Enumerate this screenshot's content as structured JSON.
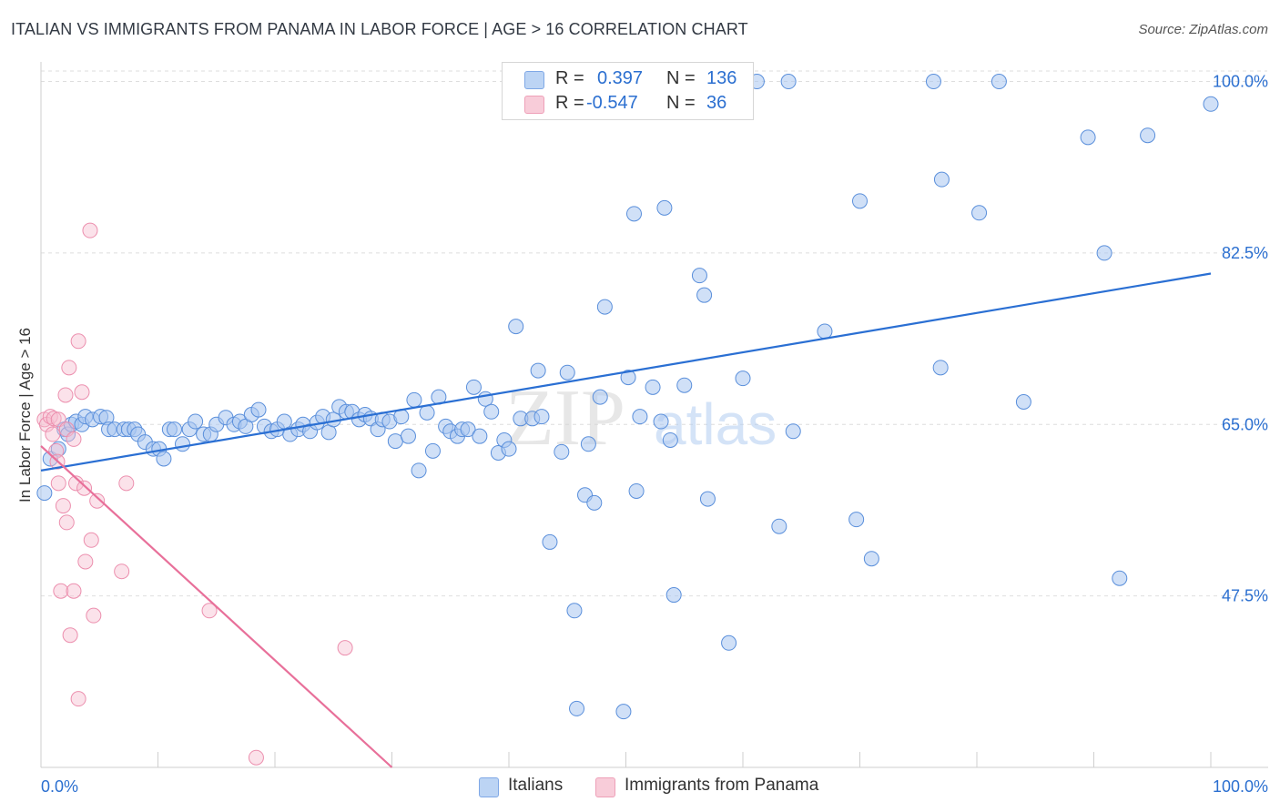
{
  "title": "ITALIAN VS IMMIGRANTS FROM PANAMA IN LABOR FORCE | AGE > 16 CORRELATION CHART",
  "source": "Source: ZipAtlas.com",
  "watermark": "ZIPatlas",
  "legend_stats": {
    "r_label": "R =",
    "n_label": "N =",
    "italians": {
      "r": "0.397",
      "n": "136",
      "color": "#a9c7f0"
    },
    "panama": {
      "r": "-0.547",
      "n": "36",
      "color": "#f4b6c8"
    }
  },
  "chart_data": {
    "type": "scatter",
    "xlabel": "",
    "ylabel": "In Labor Force | Age > 16",
    "xlim": [
      0,
      100
    ],
    "ylim": [
      30,
      102
    ],
    "x_tick_labels": [
      "0.0%",
      "100.0%"
    ],
    "y_ticks": [
      47.5,
      65.0,
      82.5,
      100.0
    ],
    "y_tick_labels": [
      "47.5%",
      "65.0%",
      "82.5%",
      "100.0%"
    ],
    "grid": true,
    "legend_position": "bottom-center",
    "series": [
      {
        "name": "Italians",
        "color": "#6f9fe0",
        "line_color": "#2a6fd3",
        "trendline": {
          "x": [
            0,
            100
          ],
          "y": [
            60.3,
            80.4
          ]
        },
        "points": [
          [
            0.3,
            58.0
          ],
          [
            0.8,
            61.5
          ],
          [
            1.5,
            62.5
          ],
          [
            2.0,
            64.5
          ],
          [
            2.3,
            64.0
          ],
          [
            2.6,
            65.0
          ],
          [
            3.0,
            65.3
          ],
          [
            3.5,
            65.0
          ],
          [
            3.8,
            65.8
          ],
          [
            4.4,
            65.5
          ],
          [
            5.1,
            65.8
          ],
          [
            5.6,
            65.7
          ],
          [
            5.8,
            64.5
          ],
          [
            6.3,
            64.5
          ],
          [
            7.1,
            64.5
          ],
          [
            7.5,
            64.5
          ],
          [
            8.0,
            64.5
          ],
          [
            8.3,
            64.0
          ],
          [
            8.9,
            63.2
          ],
          [
            9.6,
            62.5
          ],
          [
            10.1,
            62.5
          ],
          [
            10.5,
            61.5
          ],
          [
            11.0,
            64.5
          ],
          [
            11.4,
            64.5
          ],
          [
            12.1,
            63.0
          ],
          [
            12.7,
            64.5
          ],
          [
            13.2,
            65.3
          ],
          [
            13.9,
            64.0
          ],
          [
            14.5,
            64.0
          ],
          [
            15.0,
            65.0
          ],
          [
            15.8,
            65.7
          ],
          [
            16.5,
            65.0
          ],
          [
            17.0,
            65.3
          ],
          [
            17.5,
            64.8
          ],
          [
            18.0,
            66.0
          ],
          [
            18.6,
            66.5
          ],
          [
            19.1,
            64.8
          ],
          [
            19.7,
            64.3
          ],
          [
            20.2,
            64.5
          ],
          [
            20.8,
            65.3
          ],
          [
            21.3,
            64.0
          ],
          [
            22.0,
            64.5
          ],
          [
            22.4,
            65.0
          ],
          [
            23.0,
            64.3
          ],
          [
            23.6,
            65.2
          ],
          [
            24.1,
            65.8
          ],
          [
            24.6,
            64.2
          ],
          [
            25.0,
            65.5
          ],
          [
            25.5,
            66.8
          ],
          [
            26.1,
            66.3
          ],
          [
            26.6,
            66.3
          ],
          [
            27.2,
            65.5
          ],
          [
            27.7,
            66.0
          ],
          [
            28.2,
            65.6
          ],
          [
            28.8,
            64.5
          ],
          [
            29.2,
            65.5
          ],
          [
            29.8,
            65.3
          ],
          [
            30.3,
            63.3
          ],
          [
            30.8,
            65.8
          ],
          [
            31.4,
            63.8
          ],
          [
            31.9,
            67.5
          ],
          [
            32.3,
            60.3
          ],
          [
            33.0,
            66.2
          ],
          [
            33.5,
            62.3
          ],
          [
            34.0,
            67.8
          ],
          [
            34.6,
            64.8
          ],
          [
            35.0,
            64.3
          ],
          [
            35.6,
            63.8
          ],
          [
            36.0,
            64.5
          ],
          [
            36.5,
            64.5
          ],
          [
            37.0,
            68.8
          ],
          [
            37.5,
            63.8
          ],
          [
            38.0,
            67.6
          ],
          [
            38.5,
            66.3
          ],
          [
            39.1,
            62.1
          ],
          [
            39.6,
            63.4
          ],
          [
            40.0,
            62.5
          ],
          [
            40.6,
            75.0
          ],
          [
            41.0,
            65.6
          ],
          [
            42.0,
            65.6
          ],
          [
            42.5,
            70.5
          ],
          [
            42.8,
            65.8
          ],
          [
            43.5,
            53.0
          ],
          [
            44.5,
            62.2
          ],
          [
            45.0,
            70.3
          ],
          [
            45.6,
            46.0
          ],
          [
            45.8,
            36.0
          ],
          [
            46.5,
            57.8
          ],
          [
            46.8,
            63.0
          ],
          [
            47.3,
            57.0
          ],
          [
            47.8,
            67.8
          ],
          [
            48.2,
            77.0
          ],
          [
            49.2,
            98.8
          ],
          [
            49.8,
            35.7
          ],
          [
            50.2,
            69.8
          ],
          [
            50.7,
            86.5
          ],
          [
            50.9,
            58.2
          ],
          [
            51.2,
            65.8
          ],
          [
            52.3,
            68.8
          ],
          [
            53.0,
            65.3
          ],
          [
            53.3,
            87.1
          ],
          [
            53.8,
            63.4
          ],
          [
            54.1,
            47.6
          ],
          [
            55.0,
            69.0
          ],
          [
            56.0,
            98.8
          ],
          [
            56.3,
            80.2
          ],
          [
            56.7,
            78.2
          ],
          [
            57.0,
            57.4
          ],
          [
            58.0,
            100.0
          ],
          [
            58.8,
            42.7
          ],
          [
            60.0,
            69.7
          ],
          [
            61.2,
            100.0
          ],
          [
            63.1,
            54.6
          ],
          [
            63.9,
            100.0
          ],
          [
            64.3,
            64.3
          ],
          [
            67.0,
            74.5
          ],
          [
            69.7,
            55.3
          ],
          [
            70.0,
            87.8
          ],
          [
            71.0,
            51.3
          ],
          [
            76.3,
            100.0
          ],
          [
            76.9,
            70.8
          ],
          [
            77.0,
            90.0
          ],
          [
            80.2,
            86.6
          ],
          [
            81.9,
            100.0
          ],
          [
            84.0,
            67.3
          ],
          [
            89.5,
            94.3
          ],
          [
            90.9,
            82.5
          ],
          [
            92.2,
            49.3
          ],
          [
            94.6,
            94.5
          ],
          [
            100.0,
            97.7
          ]
        ]
      },
      {
        "name": "Immigrants from Panama",
        "color": "#f08fab",
        "line_color": "#e8709a",
        "trendline": {
          "x": [
            0,
            30
          ],
          "y": [
            62.8,
            30
          ]
        },
        "points": [
          [
            0.3,
            65.5
          ],
          [
            0.5,
            65.0
          ],
          [
            0.8,
            65.8
          ],
          [
            1.0,
            64.0
          ],
          [
            1.1,
            65.6
          ],
          [
            1.3,
            62.3
          ],
          [
            1.4,
            61.2
          ],
          [
            1.5,
            65.5
          ],
          [
            1.5,
            59.0
          ],
          [
            1.7,
            48.0
          ],
          [
            1.9,
            56.7
          ],
          [
            2.1,
            68.0
          ],
          [
            2.2,
            64.5
          ],
          [
            2.2,
            55.0
          ],
          [
            2.4,
            70.8
          ],
          [
            2.5,
            43.5
          ],
          [
            2.8,
            63.5
          ],
          [
            2.8,
            48.0
          ],
          [
            3.0,
            59.0
          ],
          [
            3.2,
            73.5
          ],
          [
            3.2,
            37.0
          ],
          [
            3.5,
            68.3
          ],
          [
            3.7,
            58.5
          ],
          [
            3.8,
            51.0
          ],
          [
            4.2,
            84.8
          ],
          [
            4.3,
            53.2
          ],
          [
            4.5,
            45.5
          ],
          [
            4.8,
            57.2
          ],
          [
            6.9,
            50.0
          ],
          [
            7.3,
            59.0
          ],
          [
            14.4,
            46.0
          ],
          [
            18.4,
            31.0
          ],
          [
            26.0,
            42.2
          ]
        ]
      }
    ]
  },
  "legend": {
    "items": [
      {
        "label": "Italians",
        "color": "#a9c7f0"
      },
      {
        "label": "Immigrants from Panama",
        "color": "#f4b6c8"
      }
    ]
  }
}
